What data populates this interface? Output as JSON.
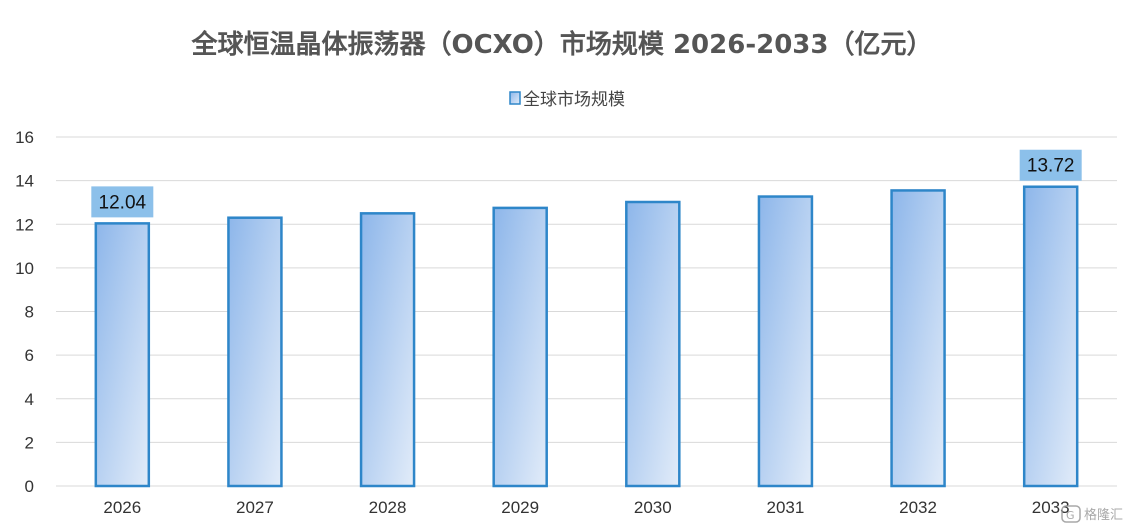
{
  "chart_data": {
    "type": "bar",
    "title": "全球恒温晶体振荡器（OCXO）市场规模 2026-2033（亿元）",
    "xlabel": "",
    "ylabel": "",
    "categories": [
      "2026",
      "2027",
      "2028",
      "2029",
      "2030",
      "2031",
      "2032",
      "2033"
    ],
    "series": [
      {
        "name": "全球市场规模",
        "values": [
          12.04,
          12.3,
          12.5,
          12.75,
          13.02,
          13.27,
          13.55,
          13.72
        ]
      }
    ],
    "data_labels": {
      "2026": "12.04",
      "2033": "13.72"
    },
    "yticks": [
      "0",
      "2",
      "4",
      "6",
      "8",
      "10",
      "12",
      "14",
      "16"
    ],
    "ylim": [
      0,
      16
    ],
    "grid": true,
    "legend_position": "top-center",
    "colors": {
      "bar_fill_start": "#8db6ea",
      "bar_fill_end": "#e2ecf9",
      "bar_border": "#2e86c9",
      "label_bg": "#8cc0ea",
      "grid": "#d9d9d9"
    }
  },
  "watermark": {
    "icon": "glh-logo-icon",
    "text": "格隆汇"
  }
}
